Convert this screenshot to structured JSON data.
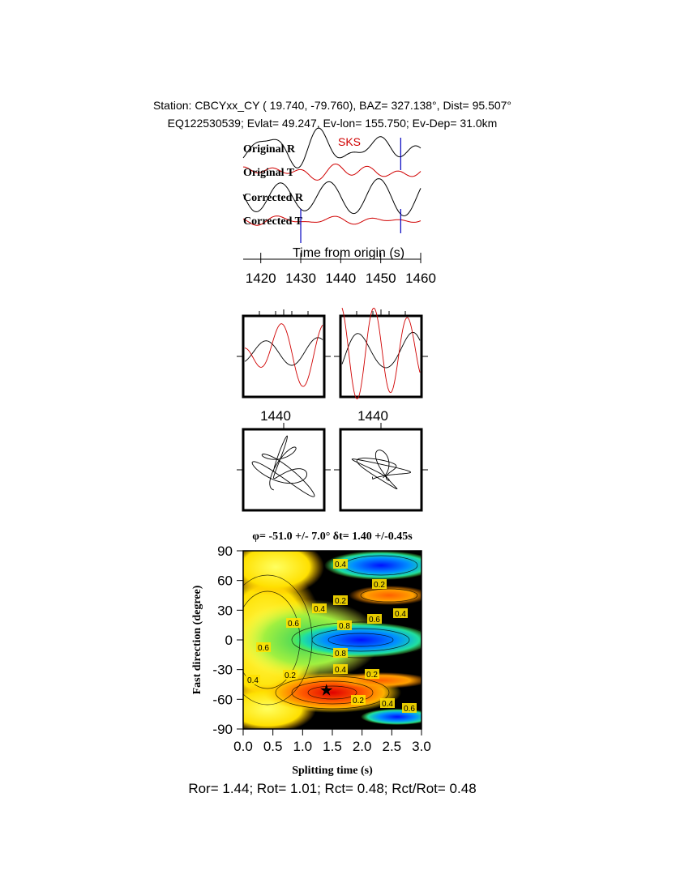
{
  "header": {
    "line1": "Station: CBCYxx_CY (  19.740,  -79.760), BAZ=  327.138°, Dist=   95.507°",
    "line2": "EQ122530539; Evlat=  49.247, Ev-lon= 155.750; Ev-Dep= 31.0km"
  },
  "traces": {
    "labels": [
      "Original R",
      "Original T",
      "Corrected R",
      "Corrected T"
    ],
    "colors": [
      "#000000",
      "#d00000",
      "#000000",
      "#d00000"
    ],
    "phase": "SKS",
    "xlabel": "Time from origin (s)",
    "xlim": [
      1415.6,
      1460
    ],
    "xticks": [
      1420,
      1430,
      1440,
      1450,
      1460
    ],
    "window_marks": [
      1430,
      1455
    ]
  },
  "windows": {
    "tick_labels": [
      "1440",
      "1440"
    ]
  },
  "grid_search": {
    "title": "φ= -51.0 +/- 7.0° δt= 1.40 +/-0.45s",
    "xlabel": "Splitting time (s)",
    "ylabel": "Fast direction (degree)",
    "xlim": [
      0,
      3
    ],
    "xticks": [
      {
        "value": 0,
        "label": "0.0"
      },
      {
        "value": 0.5,
        "label": "0.5"
      },
      {
        "value": 1,
        "label": "1.0"
      },
      {
        "value": 1.5,
        "label": "1.5"
      },
      {
        "value": 2,
        "label": "2.0"
      },
      {
        "value": 2.5,
        "label": "2.5"
      },
      {
        "value": 3,
        "label": "3.0"
      }
    ],
    "ylim": [
      -90,
      90
    ],
    "yticks": [
      -90,
      -60,
      -30,
      0,
      30,
      60,
      90
    ],
    "best": {
      "x": 1.4,
      "y": -51
    },
    "contour_labels": [
      "0.6",
      "0.4",
      "0.2",
      "0.4",
      "0.2",
      "0.6",
      "0.8",
      "0.6",
      "0.4",
      "0.4",
      "0.8",
      "0.4",
      "0.2",
      "0.2",
      "0.2",
      "0.4",
      "0.6"
    ]
  },
  "footer": "Ror= 1.44; Rot= 1.01; Rct= 0.48; Rct/Rot= 0.48"
}
